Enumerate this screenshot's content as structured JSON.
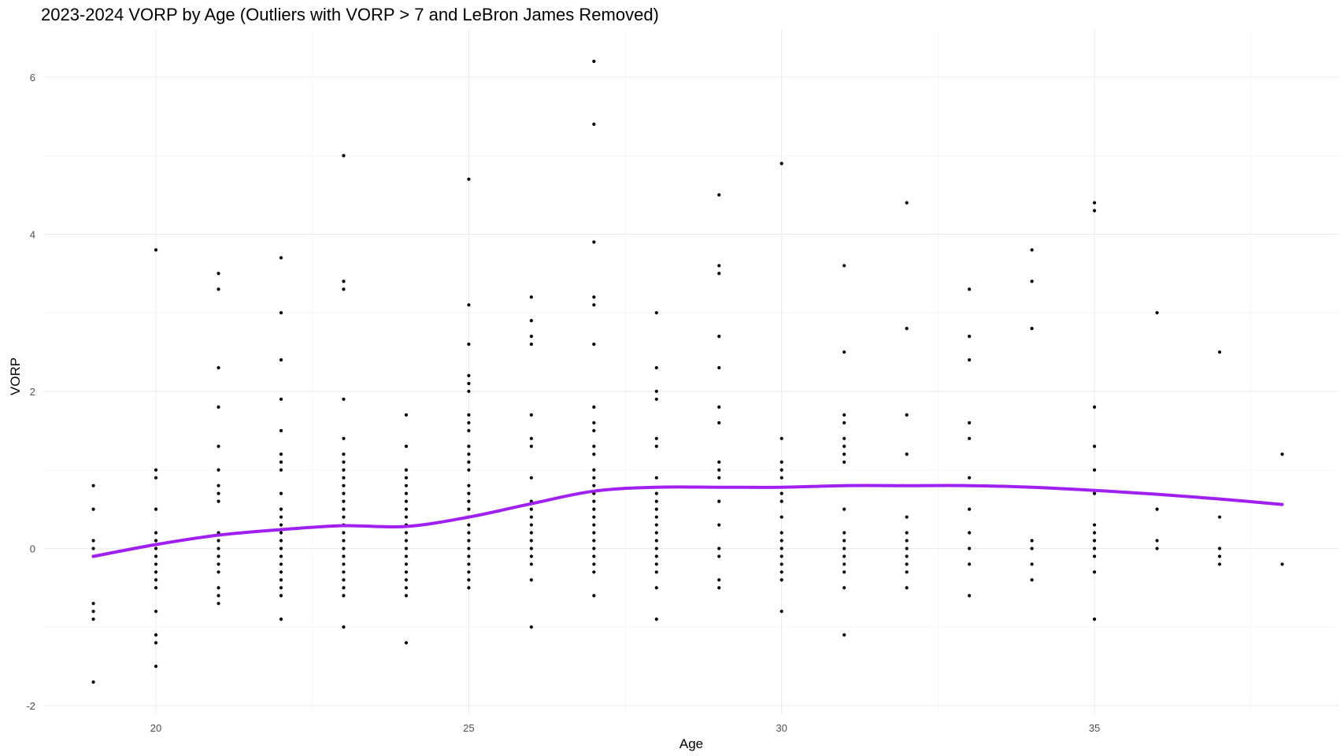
{
  "chart_data": {
    "type": "scatter",
    "title": "2023-2024 VORP by Age (Outliers with VORP > 7 and LeBron James Removed)",
    "xlabel": "Age",
    "ylabel": "VORP",
    "xlim": [
      18.2,
      38.9
    ],
    "ylim": [
      -2.1,
      6.6
    ],
    "x_ticks": [
      20,
      25,
      30,
      35
    ],
    "y_ticks": [
      -2,
      0,
      2,
      4,
      6
    ],
    "grid": true,
    "legend": "none",
    "point_color": "#000000",
    "trend_color": "#a020f0",
    "points_by_age": [
      {
        "age": 19,
        "vorp": [
          0.8,
          0.5,
          0.1,
          0.0,
          -0.1,
          -0.7,
          -0.8,
          -0.9,
          -1.7
        ]
      },
      {
        "age": 20,
        "vorp": [
          3.8,
          1.0,
          0.9,
          0.5,
          0.2,
          0.1,
          0.0,
          -0.1,
          -0.2,
          -0.3,
          -0.4,
          -0.5,
          -0.8,
          -1.1,
          -1.2,
          -1.5
        ]
      },
      {
        "age": 21,
        "vorp": [
          3.5,
          3.3,
          2.3,
          1.8,
          1.3,
          1.0,
          0.8,
          0.7,
          0.6,
          0.2,
          0.1,
          0.0,
          -0.1,
          -0.2,
          -0.3,
          -0.5,
          -0.6,
          -0.7
        ]
      },
      {
        "age": 22,
        "vorp": [
          3.7,
          3.0,
          2.4,
          1.9,
          1.5,
          1.2,
          1.1,
          1.0,
          0.7,
          0.5,
          0.4,
          0.3,
          0.2,
          0.1,
          0.0,
          -0.1,
          -0.2,
          -0.3,
          -0.4,
          -0.5,
          -0.6,
          -0.9
        ]
      },
      {
        "age": 23,
        "vorp": [
          5.0,
          3.4,
          3.3,
          1.9,
          1.4,
          1.2,
          1.1,
          1.0,
          0.9,
          0.8,
          0.7,
          0.6,
          0.5,
          0.4,
          0.3,
          0.2,
          0.1,
          0.0,
          -0.1,
          -0.2,
          -0.3,
          -0.4,
          -0.5,
          -0.6,
          -1.0
        ]
      },
      {
        "age": 24,
        "vorp": [
          1.7,
          1.3,
          1.0,
          0.9,
          0.8,
          0.7,
          0.6,
          0.5,
          0.4,
          0.3,
          0.2,
          0.1,
          0.0,
          -0.1,
          -0.2,
          -0.3,
          -0.4,
          -0.5,
          -0.6,
          -1.2
        ]
      },
      {
        "age": 25,
        "vorp": [
          4.7,
          3.1,
          2.6,
          2.2,
          2.1,
          2.0,
          1.7,
          1.6,
          1.5,
          1.3,
          1.2,
          1.1,
          1.0,
          0.8,
          0.7,
          0.6,
          0.5,
          0.4,
          0.3,
          0.2,
          0.1,
          0.0,
          -0.1,
          -0.2,
          -0.3,
          -0.4,
          -0.5
        ]
      },
      {
        "age": 26,
        "vorp": [
          3.2,
          2.9,
          2.7,
          2.6,
          1.7,
          1.4,
          1.3,
          0.9,
          0.6,
          0.5,
          0.4,
          0.3,
          0.2,
          0.1,
          0.0,
          -0.1,
          -0.2,
          -0.4,
          -1.0
        ]
      },
      {
        "age": 27,
        "vorp": [
          6.2,
          5.4,
          3.9,
          3.2,
          3.1,
          2.6,
          1.8,
          1.6,
          1.5,
          1.3,
          1.2,
          1.0,
          0.9,
          0.8,
          0.7,
          0.6,
          0.5,
          0.4,
          0.3,
          0.2,
          0.1,
          0.0,
          -0.1,
          -0.2,
          -0.3,
          -0.6
        ]
      },
      {
        "age": 28,
        "vorp": [
          3.0,
          2.3,
          2.0,
          1.9,
          1.4,
          1.3,
          0.9,
          0.7,
          0.6,
          0.5,
          0.4,
          0.3,
          0.2,
          0.1,
          0.0,
          -0.1,
          -0.2,
          -0.3,
          -0.5,
          -0.9
        ]
      },
      {
        "age": 29,
        "vorp": [
          4.5,
          3.6,
          3.5,
          2.7,
          2.3,
          1.8,
          1.6,
          1.1,
          1.0,
          0.9,
          0.6,
          0.3,
          0.0,
          -0.1,
          -0.4,
          -0.5
        ]
      },
      {
        "age": 30,
        "vorp": [
          4.9,
          1.4,
          1.1,
          1.0,
          0.9,
          0.7,
          0.6,
          0.4,
          0.2,
          0.1,
          0.0,
          -0.1,
          -0.2,
          -0.3,
          -0.4,
          -0.8
        ]
      },
      {
        "age": 31,
        "vorp": [
          3.6,
          2.5,
          1.7,
          1.6,
          1.4,
          1.3,
          1.2,
          1.1,
          0.5,
          0.2,
          0.1,
          0.0,
          -0.1,
          -0.2,
          -0.3,
          -0.5,
          -1.1
        ]
      },
      {
        "age": 32,
        "vorp": [
          4.4,
          2.8,
          1.7,
          1.2,
          0.4,
          0.2,
          0.1,
          0.0,
          -0.1,
          -0.2,
          -0.3,
          -0.5
        ]
      },
      {
        "age": 33,
        "vorp": [
          3.3,
          2.7,
          2.4,
          1.6,
          1.4,
          0.9,
          0.5,
          0.2,
          0.0,
          -0.2,
          -0.6
        ]
      },
      {
        "age": 34,
        "vorp": [
          3.8,
          3.4,
          2.8,
          0.1,
          0.0,
          -0.2,
          -0.4
        ]
      },
      {
        "age": 35,
        "vorp": [
          4.4,
          4.3,
          1.8,
          1.3,
          1.0,
          0.7,
          0.3,
          0.2,
          0.1,
          0.0,
          -0.1,
          -0.3,
          -0.9
        ]
      },
      {
        "age": 36,
        "vorp": [
          3.0,
          0.5,
          0.1,
          0.0
        ]
      },
      {
        "age": 37,
        "vorp": [
          2.5,
          0.4,
          0.0,
          -0.1,
          -0.2
        ]
      },
      {
        "age": 38,
        "vorp": [
          1.2,
          -0.2
        ]
      }
    ],
    "trend_line": {
      "x": [
        19,
        20,
        21,
        22,
        23,
        24,
        25,
        26,
        27,
        28,
        29,
        30,
        31,
        32,
        33,
        34,
        35,
        36,
        37,
        38
      ],
      "y": [
        -0.1,
        0.05,
        0.17,
        0.24,
        0.29,
        0.28,
        0.4,
        0.57,
        0.73,
        0.78,
        0.78,
        0.78,
        0.8,
        0.8,
        0.8,
        0.78,
        0.74,
        0.69,
        0.63,
        0.56
      ]
    }
  }
}
